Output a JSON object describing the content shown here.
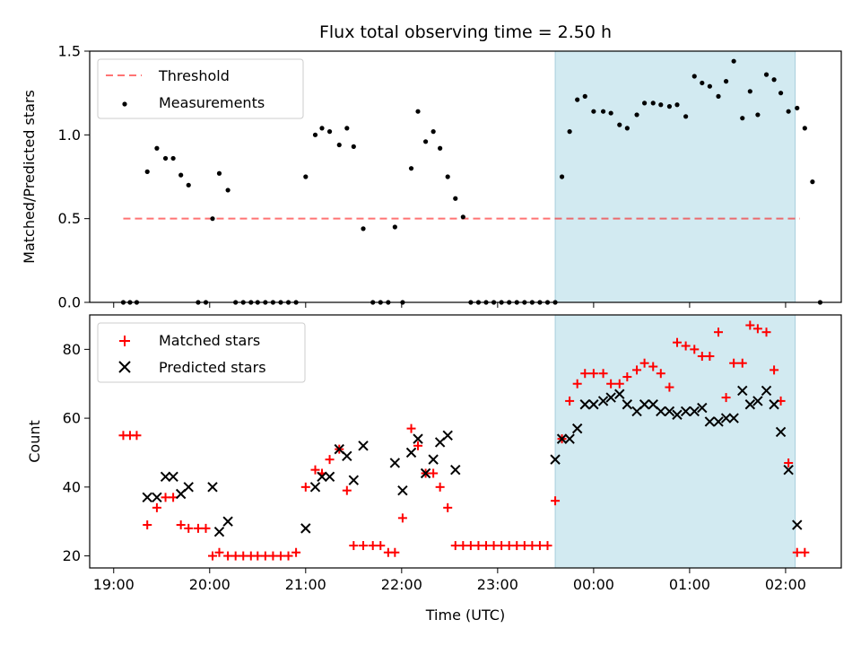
{
  "chart_data": [
    {
      "type": "scatter",
      "title": "Flux total observing time = 2.50 h",
      "xlabel": "",
      "ylabel": "Matched/Predicted stars",
      "ylim": [
        0,
        1.5
      ],
      "yticks": [
        "0.0",
        "0.5",
        "1.0",
        "1.5"
      ],
      "x_is_time_hours_from_19": true,
      "xlim": [
        -0.25,
        7.58
      ],
      "highlight_span": {
        "x0": 4.6,
        "x1": 7.1,
        "color": "#add8e6"
      },
      "threshold": {
        "name": "Threshold",
        "value": 0.5,
        "x": [
          0.1,
          7.15
        ],
        "color": "#ff0000"
      },
      "legend": {
        "position": "top-left",
        "entries": [
          "Threshold",
          "Measurements"
        ]
      },
      "series": [
        {
          "name": "Measurements",
          "marker": "dot",
          "color": "#000000",
          "points": [
            [
              0.1,
              0
            ],
            [
              0.17,
              0
            ],
            [
              0.24,
              0
            ],
            [
              0.35,
              0.78
            ],
            [
              0.45,
              0.92
            ],
            [
              0.54,
              0.86
            ],
            [
              0.62,
              0.86
            ],
            [
              0.7,
              0.76
            ],
            [
              0.78,
              0.7
            ],
            [
              0.88,
              0
            ],
            [
              0.96,
              0
            ],
            [
              1.03,
              0.5
            ],
            [
              1.1,
              0.77
            ],
            [
              1.19,
              0.67
            ],
            [
              1.27,
              0
            ],
            [
              1.35,
              0
            ],
            [
              1.43,
              0
            ],
            [
              1.5,
              0
            ],
            [
              1.58,
              0
            ],
            [
              1.66,
              0
            ],
            [
              1.74,
              0
            ],
            [
              1.82,
              0
            ],
            [
              1.9,
              0
            ],
            [
              2.0,
              0.75
            ],
            [
              2.1,
              1.0
            ],
            [
              2.17,
              1.04
            ],
            [
              2.25,
              1.02
            ],
            [
              2.35,
              0.94
            ],
            [
              2.43,
              1.04
            ],
            [
              2.5,
              0.93
            ],
            [
              2.6,
              0.44
            ],
            [
              2.7,
              0
            ],
            [
              2.78,
              0
            ],
            [
              2.86,
              0
            ],
            [
              2.93,
              0.45
            ],
            [
              3.01,
              0
            ],
            [
              3.1,
              0.8
            ],
            [
              3.17,
              1.14
            ],
            [
              3.25,
              0.96
            ],
            [
              3.33,
              1.02
            ],
            [
              3.4,
              0.92
            ],
            [
              3.48,
              0.75
            ],
            [
              3.56,
              0.62
            ],
            [
              3.64,
              0.51
            ],
            [
              3.72,
              0
            ],
            [
              3.8,
              0
            ],
            [
              3.88,
              0
            ],
            [
              3.96,
              0
            ],
            [
              4.04,
              0
            ],
            [
              4.12,
              0
            ],
            [
              4.2,
              0
            ],
            [
              4.28,
              0
            ],
            [
              4.36,
              0
            ],
            [
              4.44,
              0
            ],
            [
              4.52,
              0
            ],
            [
              4.6,
              0
            ],
            [
              4.67,
              0.75
            ],
            [
              4.75,
              1.02
            ],
            [
              4.83,
              1.21
            ],
            [
              4.91,
              1.23
            ],
            [
              5.0,
              1.14
            ],
            [
              5.1,
              1.14
            ],
            [
              5.18,
              1.13
            ],
            [
              5.27,
              1.06
            ],
            [
              5.35,
              1.04
            ],
            [
              5.45,
              1.12
            ],
            [
              5.53,
              1.19
            ],
            [
              5.62,
              1.19
            ],
            [
              5.7,
              1.18
            ],
            [
              5.79,
              1.17
            ],
            [
              5.87,
              1.18
            ],
            [
              5.96,
              1.11
            ],
            [
              6.05,
              1.35
            ],
            [
              6.13,
              1.31
            ],
            [
              6.21,
              1.29
            ],
            [
              6.3,
              1.23
            ],
            [
              6.38,
              1.32
            ],
            [
              6.46,
              1.44
            ],
            [
              6.55,
              1.1
            ],
            [
              6.63,
              1.26
            ],
            [
              6.71,
              1.12
            ],
            [
              6.8,
              1.36
            ],
            [
              6.88,
              1.33
            ],
            [
              6.95,
              1.25
            ],
            [
              7.03,
              1.14
            ],
            [
              7.12,
              1.16
            ],
            [
              7.2,
              1.04
            ],
            [
              7.28,
              0.72
            ],
            [
              7.36,
              0
            ]
          ]
        }
      ]
    },
    {
      "type": "scatter",
      "title": "",
      "xlabel": "Time (UTC)",
      "ylabel": "Count",
      "ylim": [
        16.5,
        90
      ],
      "yticks": [
        "20",
        "40",
        "60",
        "80"
      ],
      "xticks": [
        "19:00",
        "20:00",
        "21:00",
        "22:00",
        "23:00",
        "00:00",
        "01:00",
        "02:00"
      ],
      "highlight_span": {
        "x0": 4.6,
        "x1": 7.1,
        "color": "#add8e6"
      },
      "legend": {
        "position": "top-left",
        "entries": [
          "Matched stars",
          "Predicted stars"
        ]
      },
      "series": [
        {
          "name": "Matched stars",
          "marker": "plus",
          "color": "#ff0000",
          "points": [
            [
              0.1,
              55
            ],
            [
              0.17,
              55
            ],
            [
              0.24,
              55
            ],
            [
              0.35,
              29
            ],
            [
              0.45,
              34
            ],
            [
              0.54,
              37
            ],
            [
              0.62,
              37
            ],
            [
              0.7,
              29
            ],
            [
              0.78,
              28
            ],
            [
              0.88,
              28
            ],
            [
              0.96,
              28
            ],
            [
              1.03,
              20
            ],
            [
              1.1,
              21
            ],
            [
              1.19,
              20
            ],
            [
              1.27,
              20
            ],
            [
              1.35,
              20
            ],
            [
              1.43,
              20
            ],
            [
              1.5,
              20
            ],
            [
              1.58,
              20
            ],
            [
              1.66,
              20
            ],
            [
              1.74,
              20
            ],
            [
              1.82,
              20
            ],
            [
              1.9,
              21
            ],
            [
              2.0,
              40
            ],
            [
              2.1,
              45
            ],
            [
              2.17,
              44
            ],
            [
              2.25,
              48
            ],
            [
              2.35,
              51
            ],
            [
              2.43,
              39
            ],
            [
              2.5,
              23
            ],
            [
              2.6,
              23
            ],
            [
              2.7,
              23
            ],
            [
              2.78,
              23
            ],
            [
              2.86,
              21
            ],
            [
              2.93,
              21
            ],
            [
              3.01,
              31
            ],
            [
              3.1,
              57
            ],
            [
              3.17,
              52
            ],
            [
              3.25,
              44
            ],
            [
              3.33,
              44
            ],
            [
              3.4,
              40
            ],
            [
              3.48,
              34
            ],
            [
              3.56,
              23
            ],
            [
              3.64,
              23
            ],
            [
              3.72,
              23
            ],
            [
              3.8,
              23
            ],
            [
              3.88,
              23
            ],
            [
              3.96,
              23
            ],
            [
              4.04,
              23
            ],
            [
              4.12,
              23
            ],
            [
              4.2,
              23
            ],
            [
              4.28,
              23
            ],
            [
              4.36,
              23
            ],
            [
              4.44,
              23
            ],
            [
              4.52,
              23
            ],
            [
              4.6,
              36
            ],
            [
              4.67,
              54
            ],
            [
              4.75,
              65
            ],
            [
              4.83,
              70
            ],
            [
              4.91,
              73
            ],
            [
              5.0,
              73
            ],
            [
              5.1,
              73
            ],
            [
              5.18,
              70
            ],
            [
              5.27,
              70
            ],
            [
              5.35,
              72
            ],
            [
              5.45,
              74
            ],
            [
              5.53,
              76
            ],
            [
              5.62,
              75
            ],
            [
              5.7,
              73
            ],
            [
              5.79,
              69
            ],
            [
              5.87,
              82
            ],
            [
              5.96,
              81
            ],
            [
              6.05,
              80
            ],
            [
              6.13,
              78
            ],
            [
              6.21,
              78
            ],
            [
              6.3,
              85
            ],
            [
              6.38,
              66
            ],
            [
              6.46,
              76
            ],
            [
              6.55,
              76
            ],
            [
              6.63,
              87
            ],
            [
              6.71,
              86
            ],
            [
              6.8,
              85
            ],
            [
              6.88,
              74
            ],
            [
              6.95,
              65
            ],
            [
              7.03,
              47
            ],
            [
              7.12,
              21
            ],
            [
              7.2,
              21
            ]
          ]
        },
        {
          "name": "Predicted stars",
          "marker": "x",
          "color": "#000000",
          "points": [
            [
              0.35,
              37
            ],
            [
              0.45,
              37
            ],
            [
              0.54,
              43
            ],
            [
              0.62,
              43
            ],
            [
              0.7,
              38
            ],
            [
              0.78,
              40
            ],
            [
              1.03,
              40
            ],
            [
              1.1,
              27
            ],
            [
              1.19,
              30
            ],
            [
              2.0,
              28
            ],
            [
              2.1,
              40
            ],
            [
              2.17,
              43
            ],
            [
              2.25,
              43
            ],
            [
              2.35,
              51
            ],
            [
              2.43,
              49
            ],
            [
              2.5,
              42
            ],
            [
              2.6,
              52
            ],
            [
              2.93,
              47
            ],
            [
              3.01,
              39
            ],
            [
              3.1,
              50
            ],
            [
              3.17,
              54
            ],
            [
              3.25,
              44
            ],
            [
              3.33,
              48
            ],
            [
              3.4,
              53
            ],
            [
              3.48,
              55
            ],
            [
              3.56,
              45
            ],
            [
              4.6,
              48
            ],
            [
              4.67,
              54
            ],
            [
              4.75,
              54
            ],
            [
              4.83,
              57
            ],
            [
              4.91,
              64
            ],
            [
              5.0,
              64
            ],
            [
              5.1,
              65
            ],
            [
              5.18,
              66
            ],
            [
              5.27,
              67
            ],
            [
              5.35,
              64
            ],
            [
              5.45,
              62
            ],
            [
              5.53,
              64
            ],
            [
              5.62,
              64
            ],
            [
              5.7,
              62
            ],
            [
              5.79,
              62
            ],
            [
              5.87,
              61
            ],
            [
              5.96,
              62
            ],
            [
              6.05,
              62
            ],
            [
              6.13,
              63
            ],
            [
              6.21,
              59
            ],
            [
              6.3,
              59
            ],
            [
              6.38,
              60
            ],
            [
              6.46,
              60
            ],
            [
              6.55,
              68
            ],
            [
              6.63,
              64
            ],
            [
              6.71,
              65
            ],
            [
              6.8,
              68
            ],
            [
              6.88,
              64
            ],
            [
              6.95,
              56
            ],
            [
              7.03,
              45
            ],
            [
              7.12,
              29
            ]
          ]
        }
      ]
    }
  ]
}
